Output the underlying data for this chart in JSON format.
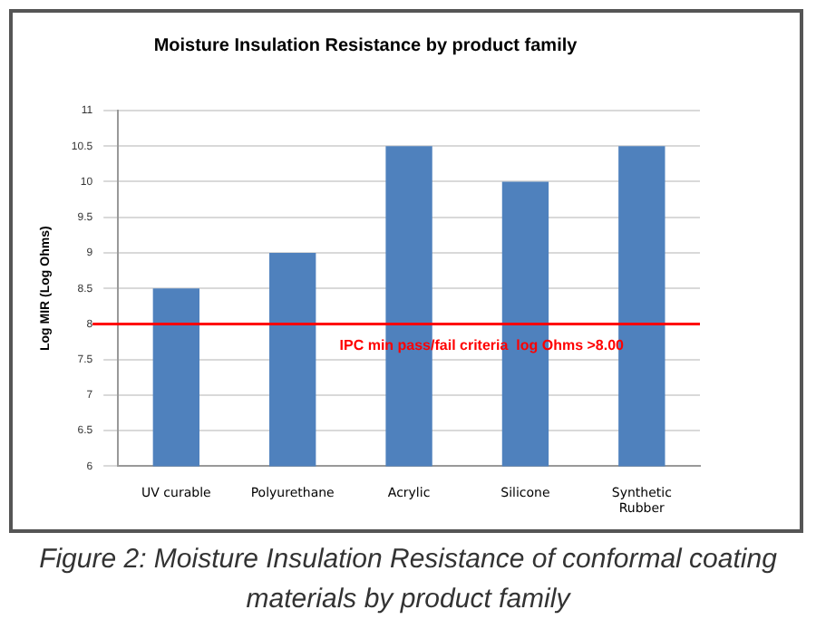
{
  "chart_data": {
    "type": "bar",
    "title": "Moisture Insulation Resistance by product family",
    "ylabel": "Log MIR (Log Ohms)",
    "categories": [
      "UV curable",
      "Polyurethane",
      "Acrylic",
      "Silicone",
      "Synthetic Rubber"
    ],
    "values": [
      8.5,
      9,
      10.5,
      10,
      10.5
    ],
    "color": "#4f81bd",
    "ylim": [
      6,
      11
    ],
    "yticks": [
      6,
      6.5,
      7,
      7.5,
      8,
      8.5,
      9,
      9.5,
      10,
      10.5,
      11
    ],
    "grid": "y",
    "ref_lines": [
      {
        "axis": "y",
        "value": 8,
        "label": "IPC min pass/fail criteria  log Ohms >8.00",
        "color": "#ff0000"
      }
    ],
    "annotations": [
      "Figure 2: Moisture Insulation Resistance of conformal coating materials by product family"
    ]
  }
}
